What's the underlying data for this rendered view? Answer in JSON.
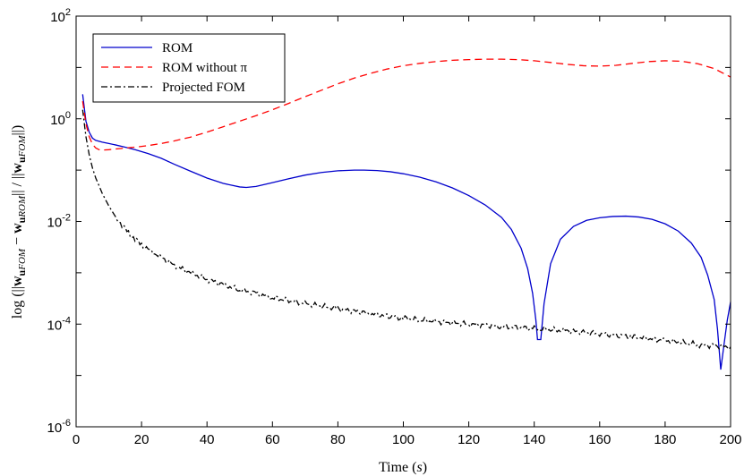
{
  "chart_data": {
    "type": "line",
    "title": "",
    "xlabel": "Time (s)",
    "ylabel": "log (||w_uFOM − w_uROM|| / ||w_uFOM||)",
    "xlim": [
      0,
      200
    ],
    "ylim_log10": [
      -6,
      2
    ],
    "y_scale": "log",
    "grid": false,
    "legend_position": "top-left",
    "x_ticks": [
      "0",
      "20",
      "40",
      "60",
      "80",
      "100",
      "120",
      "140",
      "160",
      "180",
      "200"
    ],
    "y_ticks": [
      {
        "base": "10",
        "exp": "-6"
      },
      {
        "base": "10",
        "exp": "-4"
      },
      {
        "base": "10",
        "exp": "-2"
      },
      {
        "base": "10",
        "exp": "0"
      },
      {
        "base": "10",
        "exp": "2"
      }
    ],
    "series": [
      {
        "name": "ROM",
        "color": "#0000cc",
        "dash": "solid",
        "points": [
          [
            2,
            3.0
          ],
          [
            3,
            0.9
          ],
          [
            4,
            0.55
          ],
          [
            5,
            0.42
          ],
          [
            6,
            0.38
          ],
          [
            8,
            0.35
          ],
          [
            10,
            0.33
          ],
          [
            12,
            0.31
          ],
          [
            15,
            0.28
          ],
          [
            18,
            0.25
          ],
          [
            22,
            0.21
          ],
          [
            26,
            0.17
          ],
          [
            30,
            0.13
          ],
          [
            35,
            0.095
          ],
          [
            40,
            0.07
          ],
          [
            45,
            0.055
          ],
          [
            50,
            0.047
          ],
          [
            52,
            0.046
          ],
          [
            55,
            0.048
          ],
          [
            60,
            0.057
          ],
          [
            65,
            0.068
          ],
          [
            70,
            0.08
          ],
          [
            75,
            0.09
          ],
          [
            80,
            0.097
          ],
          [
            85,
            0.1
          ],
          [
            88,
            0.1
          ],
          [
            92,
            0.098
          ],
          [
            96,
            0.093
          ],
          [
            100,
            0.085
          ],
          [
            105,
            0.073
          ],
          [
            110,
            0.059
          ],
          [
            115,
            0.045
          ],
          [
            120,
            0.032
          ],
          [
            125,
            0.021
          ],
          [
            130,
            0.012
          ],
          [
            133,
            0.007
          ],
          [
            136,
            0.003
          ],
          [
            138,
            0.0012
          ],
          [
            139.5,
            0.0004
          ],
          [
            140.5,
            0.00012
          ],
          [
            141,
            5e-05
          ],
          [
            142,
            5e-05
          ],
          [
            143,
            0.00025
          ],
          [
            145,
            0.0015
          ],
          [
            148,
            0.0045
          ],
          [
            152,
            0.008
          ],
          [
            156,
            0.0105
          ],
          [
            160,
            0.0118
          ],
          [
            164,
            0.0125
          ],
          [
            168,
            0.0127
          ],
          [
            172,
            0.0122
          ],
          [
            176,
            0.011
          ],
          [
            180,
            0.009
          ],
          [
            184,
            0.0065
          ],
          [
            188,
            0.0038
          ],
          [
            191,
            0.002
          ],
          [
            193,
            0.0009
          ],
          [
            195,
            0.0003
          ],
          [
            196,
            8e-05
          ],
          [
            197,
            1.3e-05
          ],
          [
            198,
            4e-05
          ],
          [
            199,
            0.00012
          ],
          [
            200,
            0.00027
          ]
        ]
      },
      {
        "name": "ROM without π",
        "color": "#ff0000",
        "dash": "dashed",
        "points": [
          [
            2,
            2.2
          ],
          [
            3,
            0.8
          ],
          [
            4,
            0.45
          ],
          [
            5,
            0.32
          ],
          [
            6,
            0.27
          ],
          [
            7,
            0.25
          ],
          [
            8,
            0.245
          ],
          [
            10,
            0.25
          ],
          [
            14,
            0.265
          ],
          [
            18,
            0.28
          ],
          [
            22,
            0.3
          ],
          [
            26,
            0.33
          ],
          [
            30,
            0.37
          ],
          [
            35,
            0.44
          ],
          [
            40,
            0.55
          ],
          [
            45,
            0.7
          ],
          [
            50,
            0.9
          ],
          [
            55,
            1.15
          ],
          [
            60,
            1.5
          ],
          [
            65,
            2.0
          ],
          [
            70,
            2.7
          ],
          [
            75,
            3.6
          ],
          [
            80,
            4.8
          ],
          [
            85,
            6.2
          ],
          [
            90,
            7.7
          ],
          [
            95,
            9.3
          ],
          [
            100,
            10.8
          ],
          [
            105,
            12.0
          ],
          [
            110,
            13.0
          ],
          [
            115,
            13.8
          ],
          [
            120,
            14.2
          ],
          [
            125,
            14.5
          ],
          [
            130,
            14.5
          ],
          [
            135,
            14.2
          ],
          [
            140,
            13.5
          ],
          [
            145,
            12.5
          ],
          [
            150,
            11.5
          ],
          [
            155,
            10.8
          ],
          [
            160,
            10.6
          ],
          [
            165,
            11.0
          ],
          [
            170,
            12.0
          ],
          [
            175,
            13.0
          ],
          [
            180,
            13.5
          ],
          [
            185,
            13.2
          ],
          [
            190,
            11.8
          ],
          [
            195,
            9.5
          ],
          [
            200,
            6.5
          ]
        ]
      },
      {
        "name": "Projected FOM",
        "color": "#000000",
        "dash": "dashdot",
        "points": [
          [
            2,
            1.5
          ],
          [
            3,
            0.45
          ],
          [
            4,
            0.2
          ],
          [
            5,
            0.11
          ],
          [
            6,
            0.07
          ],
          [
            7,
            0.05
          ],
          [
            8,
            0.035
          ],
          [
            10,
            0.02
          ],
          [
            12,
            0.0125
          ],
          [
            14,
            0.0085
          ],
          [
            16,
            0.006
          ],
          [
            18,
            0.0045
          ],
          [
            20,
            0.0035
          ],
          [
            23,
            0.0026
          ],
          [
            26,
            0.002
          ],
          [
            30,
            0.0014
          ],
          [
            35,
            0.001
          ],
          [
            40,
            0.00075
          ],
          [
            45,
            0.00058
          ],
          [
            50,
            0.00047
          ],
          [
            55,
            0.00039
          ],
          [
            60,
            0.00033
          ],
          [
            70,
            0.00025
          ],
          [
            80,
            0.0002
          ],
          [
            90,
            0.00016
          ],
          [
            100,
            0.00013
          ],
          [
            110,
            0.000112
          ],
          [
            120,
            0.0001
          ],
          [
            130,
            9e-05
          ],
          [
            140,
            8.2e-05
          ],
          [
            150,
            7.4e-05
          ],
          [
            160,
            6.5e-05
          ],
          [
            170,
            5.7e-05
          ],
          [
            180,
            4.8e-05
          ],
          [
            190,
            4e-05
          ],
          [
            200,
            3.6e-05
          ]
        ]
      }
    ]
  }
}
